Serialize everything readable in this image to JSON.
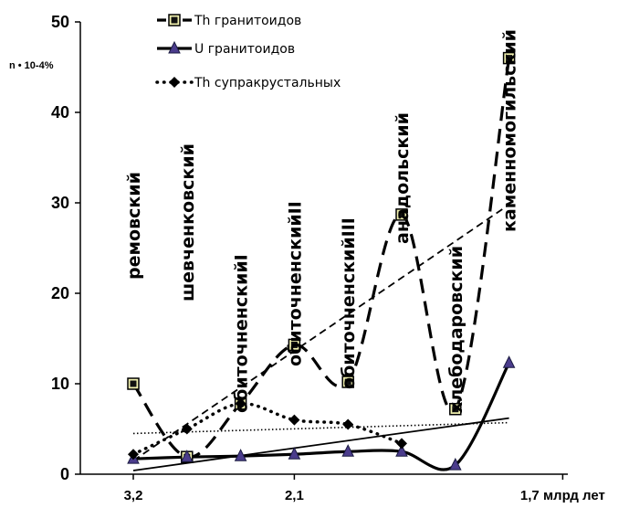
{
  "chart_data": {
    "type": "line",
    "y_unit_label": "n • 10-4%",
    "xlabel": "",
    "ylabel": "",
    "ylim": [
      0,
      50
    ],
    "y_ticks": [
      "0",
      "10",
      "20",
      "30",
      "40",
      "50"
    ],
    "x_tick_labels": [
      "3,2",
      "2,1",
      "1,7 млрд лет"
    ],
    "x_tick_positions": [
      1,
      4,
      9
    ],
    "series": [
      {
        "name": "Th гранитоидов",
        "color": "#000000",
        "marker": "square",
        "line_style": "long-dash",
        "x": [
          1,
          2,
          3,
          4,
          5,
          6,
          7,
          8
        ],
        "y": [
          10.0,
          1.9,
          7.8,
          14.3,
          10.2,
          28.7,
          7.2,
          46.0
        ]
      },
      {
        "name": "U гранитоидов",
        "color": "#000000",
        "marker": "triangle",
        "line_style": "solid",
        "x": [
          1,
          2,
          3,
          4,
          5,
          6,
          7,
          8
        ],
        "y": [
          1.7,
          1.9,
          2.0,
          2.2,
          2.5,
          2.5,
          1.0,
          12.3
        ]
      },
      {
        "name": "Th супракрустальных",
        "color": "#000000",
        "marker": "diamond",
        "line_style": "dotted",
        "x": [
          1,
          2,
          3,
          4,
          5,
          6
        ],
        "y": [
          2.2,
          5.0,
          7.8,
          6.0,
          5.5,
          3.4
        ]
      }
    ],
    "trendlines": [
      {
        "of": "Th гранитоидов",
        "style": "dashed",
        "x": [
          1,
          8
        ],
        "y": [
          1.5,
          29.8
        ]
      },
      {
        "of": "U гранитоидов",
        "style": "solid",
        "x": [
          1,
          8
        ],
        "y": [
          0.4,
          6.2
        ]
      },
      {
        "of": "Th супракрустальных",
        "style": "dotted",
        "x": [
          1,
          8
        ],
        "y": [
          4.5,
          5.7
        ]
      }
    ],
    "annotations": [
      {
        "text": "ремовский",
        "x": 1
      },
      {
        "text": "шевченковский",
        "x": 2
      },
      {
        "text": "обиточненскийI",
        "x": 3
      },
      {
        "text": "обиточненскийII",
        "x": 4
      },
      {
        "text": "обиточненскийIII",
        "x": 5
      },
      {
        "text": "анадольский",
        "x": 6
      },
      {
        "text": "хлебодаровский",
        "x": 7
      },
      {
        "text": "каменномогильский",
        "x": 8
      }
    ],
    "legend_position": "top-center",
    "grid": false
  }
}
